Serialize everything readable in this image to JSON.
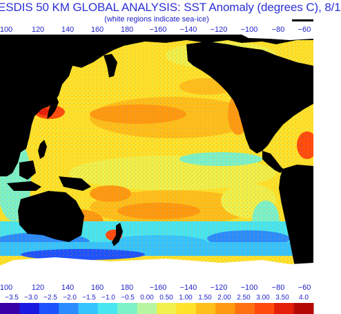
{
  "title": "ESDIS 50 KM GLOBAL ANALYSIS: SST Anomaly (degrees C), 8/1",
  "subtitle": "(white regions indicate sea-ice)",
  "longitude_labels": [
    "100",
    "120",
    "140",
    "160",
    "180",
    "−160",
    "−140",
    "−120",
    "−100",
    "−80",
    "−60"
  ],
  "colorbar": {
    "labels": [
      "−3.5",
      "−3.0",
      "−2.5",
      "−2.0",
      "−1.5",
      "−1.0",
      "−0.5",
      "0.00",
      "0.50",
      "1.00",
      "1.50",
      "2.00",
      "2.50",
      "3.00",
      "3.50",
      "4.0"
    ],
    "colors": [
      "#3a00a8",
      "#1a18e0",
      "#1e52ff",
      "#2a8cff",
      "#36c4ff",
      "#47e6f0",
      "#7cf2c8",
      "#b8f5a0",
      "#f0f04a",
      "#ffe22a",
      "#ffbf1a",
      "#ff9a10",
      "#ff7010",
      "#ff4a0c",
      "#e41e08",
      "#b40a04"
    ]
  },
  "legend_colors": {
    "land": "#000000",
    "sea_ice": "#ffffff",
    "near_zero": "#ffe22a",
    "warm": "#ff9a10",
    "cool": "#2a8cff"
  }
}
